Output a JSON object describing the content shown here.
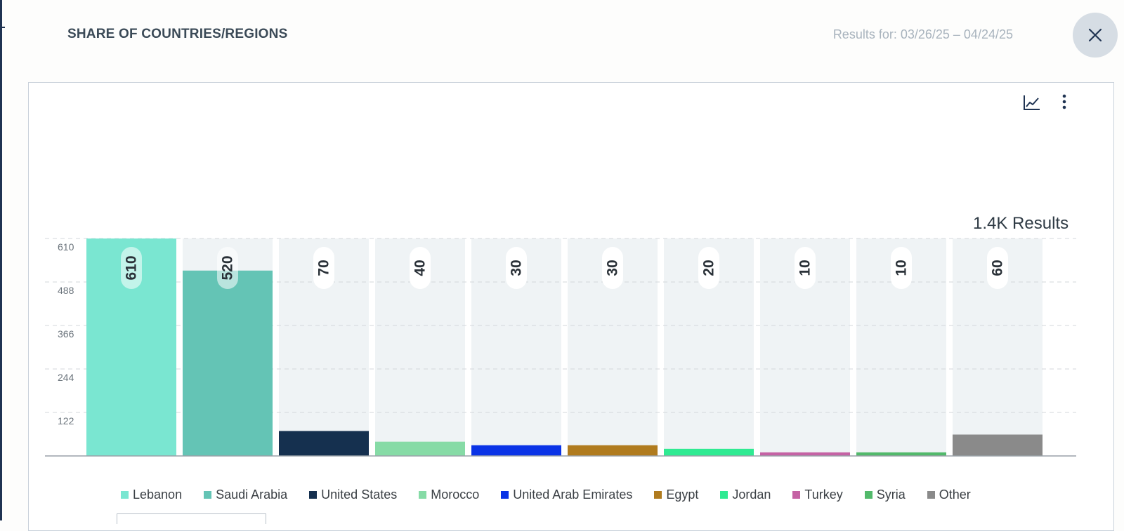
{
  "header": {
    "title": "SHARE OF COUNTRIES/REGIONS",
    "date_range": "Results for: 03/26/25 – 04/24/25",
    "close_icon": "close-icon"
  },
  "toolbar": {
    "chart_icon": "line-chart-icon",
    "menu_icon": "more-vertical-icon"
  },
  "results_total": "1.4K Results",
  "chart_data": {
    "type": "bar",
    "categories": [
      "Lebanon",
      "Saudi Arabia",
      "United States",
      "Morocco",
      "United Arab Emirates",
      "Egypt",
      "Jordan",
      "Turkey",
      "Syria",
      "Other"
    ],
    "values": [
      610,
      520,
      70,
      40,
      30,
      30,
      20,
      10,
      10,
      60
    ],
    "value_labels": [
      "610",
      "520",
      "70",
      "40",
      "30",
      "30",
      "20",
      "10",
      "10",
      "60"
    ],
    "colors": [
      "#7ae6d1",
      "#64c4b5",
      "#15304f",
      "#86dba6",
      "#0a33e6",
      "#b07b1e",
      "#2fea92",
      "#c562a4",
      "#52b96b",
      "#8a8a8a"
    ],
    "y_ticks": [
      610,
      488,
      366,
      244,
      122
    ],
    "y_tick_labels": [
      "610",
      "488",
      "366",
      "244",
      "122"
    ],
    "ylim": [
      0,
      610
    ],
    "grid": true,
    "legend": "bottom",
    "bar_background": "#eff3f5"
  }
}
